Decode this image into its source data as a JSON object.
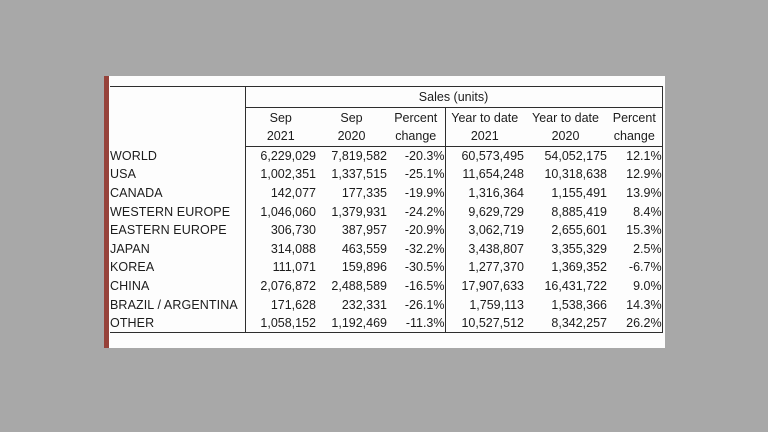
{
  "colors": {
    "background": "#a8a8a8",
    "panel": "#fdfdfd",
    "accent_bar": "#96423a",
    "border": "#2e2e2e",
    "text": "#1c1c1c"
  },
  "chart_data": {
    "type": "table",
    "title": "Sales (units)",
    "columns": [
      {
        "line1": "Sep",
        "line2": "2021"
      },
      {
        "line1": "Sep",
        "line2": "2020"
      },
      {
        "line1": "Percent",
        "line2": "change"
      },
      {
        "line1": "Year to date",
        "line2": "2021"
      },
      {
        "line1": "Year to date",
        "line2": "2020"
      },
      {
        "line1": "Percent",
        "line2": "change"
      }
    ],
    "rows": [
      {
        "region": "WORLD",
        "values": [
          "6,229,029",
          "7,819,582",
          "-20.3%",
          "60,573,495",
          "54,052,175",
          "12.1%"
        ]
      },
      {
        "region": "USA",
        "values": [
          "1,002,351",
          "1,337,515",
          "-25.1%",
          "11,654,248",
          "10,318,638",
          "12.9%"
        ]
      },
      {
        "region": "CANADA",
        "values": [
          "142,077",
          "177,335",
          "-19.9%",
          "1,316,364",
          "1,155,491",
          "13.9%"
        ]
      },
      {
        "region": "WESTERN EUROPE",
        "values": [
          "1,046,060",
          "1,379,931",
          "-24.2%",
          "9,629,729",
          "8,885,419",
          "8.4%"
        ]
      },
      {
        "region": "EASTERN EUROPE",
        "values": [
          "306,730",
          "387,957",
          "-20.9%",
          "3,062,719",
          "2,655,601",
          "15.3%"
        ]
      },
      {
        "region": "JAPAN",
        "values": [
          "314,088",
          "463,559",
          "-32.2%",
          "3,438,807",
          "3,355,329",
          "2.5%"
        ]
      },
      {
        "region": "KOREA",
        "values": [
          "111,071",
          "159,896",
          "-30.5%",
          "1,277,370",
          "1,369,352",
          "-6.7%"
        ]
      },
      {
        "region": "CHINA",
        "values": [
          "2,076,872",
          "2,488,589",
          "-16.5%",
          "17,907,633",
          "16,431,722",
          "9.0%"
        ]
      },
      {
        "region": "BRAZIL / ARGENTINA",
        "values": [
          "171,628",
          "232,331",
          "-26.1%",
          "1,759,113",
          "1,538,366",
          "14.3%"
        ]
      },
      {
        "region": "OTHER",
        "values": [
          "1,058,152",
          "1,192,469",
          "-11.3%",
          "10,527,512",
          "8,342,257",
          "26.2%"
        ]
      }
    ]
  }
}
